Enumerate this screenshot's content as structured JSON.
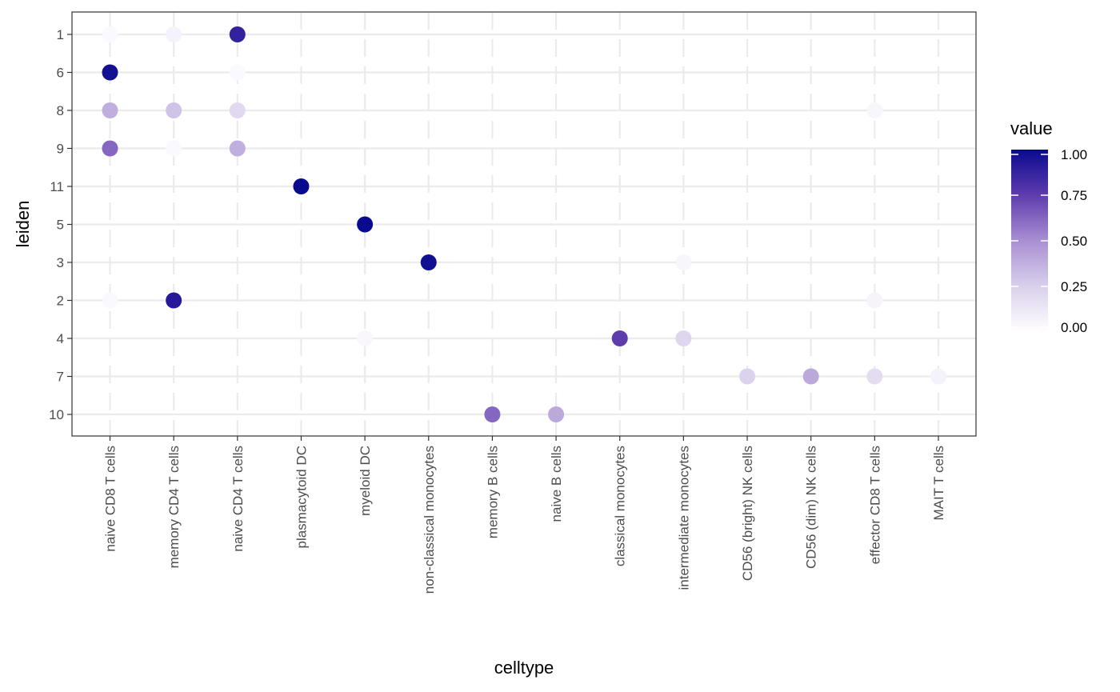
{
  "chart_data": {
    "type": "dotplot",
    "xlabel": "celltype",
    "ylabel": "leiden",
    "categories_x": [
      "naive CD8 T cells",
      "memory CD4 T cells",
      "naive CD4 T cells",
      "plasmacytoid DC",
      "myeloid DC",
      "non-classical monocytes",
      "memory B cells",
      "naive B cells",
      "classical monocytes",
      "intermediate monocytes",
      "CD56 (bright) NK cells",
      "CD56 (dim) NK cells",
      "effector CD8 T cells",
      "MAIT T cells"
    ],
    "categories_y": [
      "1",
      "6",
      "8",
      "9",
      "11",
      "5",
      "3",
      "2",
      "4",
      "7",
      "10"
    ],
    "points": [
      {
        "x": "naive CD8 T cells",
        "y": "1",
        "value": 0.03
      },
      {
        "x": "memory CD4 T cells",
        "y": "1",
        "value": 0.07
      },
      {
        "x": "naive CD4 T cells",
        "y": "1",
        "value": 0.88
      },
      {
        "x": "naive CD8 T cells",
        "y": "6",
        "value": 0.97
      },
      {
        "x": "naive CD4 T cells",
        "y": "6",
        "value": 0.03
      },
      {
        "x": "naive CD8 T cells",
        "y": "8",
        "value": 0.38
      },
      {
        "x": "memory CD4 T cells",
        "y": "8",
        "value": 0.3
      },
      {
        "x": "naive CD4 T cells",
        "y": "8",
        "value": 0.2
      },
      {
        "x": "effector CD8 T cells",
        "y": "8",
        "value": 0.05
      },
      {
        "x": "naive CD8 T cells",
        "y": "9",
        "value": 0.62
      },
      {
        "x": "memory CD4 T cells",
        "y": "9",
        "value": 0.03
      },
      {
        "x": "naive CD4 T cells",
        "y": "9",
        "value": 0.38
      },
      {
        "x": "plasmacytoid DC",
        "y": "11",
        "value": 1.0
      },
      {
        "x": "myeloid DC",
        "y": "5",
        "value": 1.0
      },
      {
        "x": "non-classical monocytes",
        "y": "3",
        "value": 0.98
      },
      {
        "x": "intermediate monocytes",
        "y": "3",
        "value": 0.05
      },
      {
        "x": "naive CD8 T cells",
        "y": "2",
        "value": 0.03
      },
      {
        "x": "memory CD4 T cells",
        "y": "2",
        "value": 0.92
      },
      {
        "x": "effector CD8 T cells",
        "y": "2",
        "value": 0.06
      },
      {
        "x": "myeloid DC",
        "y": "4",
        "value": 0.04
      },
      {
        "x": "classical monocytes",
        "y": "4",
        "value": 0.75
      },
      {
        "x": "intermediate monocytes",
        "y": "4",
        "value": 0.22
      },
      {
        "x": "CD56 (bright) NK cells",
        "y": "7",
        "value": 0.24
      },
      {
        "x": "CD56 (dim) NK cells",
        "y": "7",
        "value": 0.4
      },
      {
        "x": "effector CD8 T cells",
        "y": "7",
        "value": 0.18
      },
      {
        "x": "MAIT T cells",
        "y": "7",
        "value": 0.07
      },
      {
        "x": "memory B cells",
        "y": "10",
        "value": 0.62
      },
      {
        "x": "naive B cells",
        "y": "10",
        "value": 0.4
      }
    ],
    "color_scale": {
      "title": "value",
      "low": "#ffffff",
      "high": "#0a0a8f",
      "breaks": [
        "0.00",
        "0.25",
        "0.50",
        "0.75",
        "1.00"
      ],
      "range": [
        0,
        1
      ]
    },
    "grid": true
  }
}
